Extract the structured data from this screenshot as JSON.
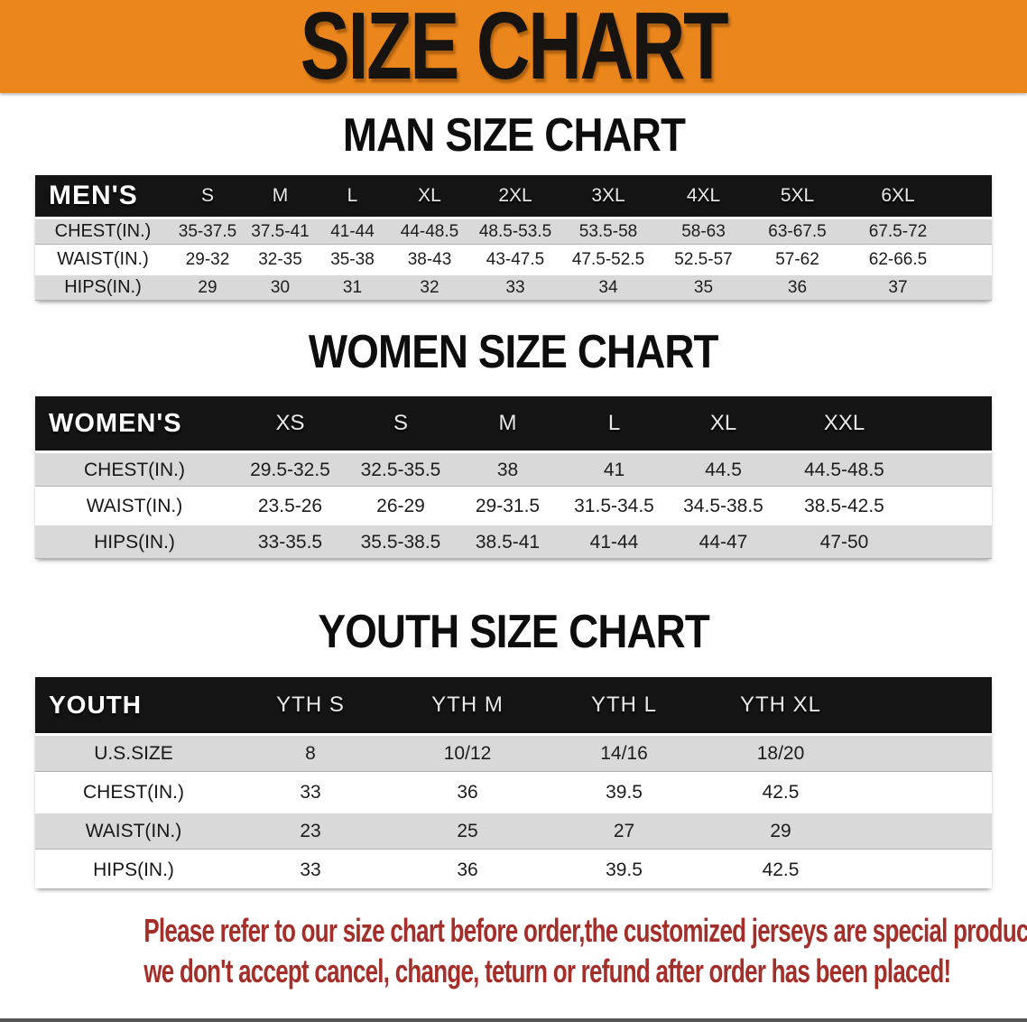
{
  "banner": {
    "title": "SIZE CHART"
  },
  "colors": {
    "banner_bg": "#EA861B",
    "header_bar": "#141414",
    "row_gray": "#D9D9D9",
    "disclaimer_text": "#A42F2A"
  },
  "sections": [
    {
      "heading": "MAN SIZE CHART",
      "table": {
        "label": "MEN'S",
        "columns": [
          "S",
          "M",
          "L",
          "XL",
          "2XL",
          "3XL",
          "4XL",
          "5XL",
          "6XL"
        ],
        "rows": [
          {
            "label": "CHEST(IN.)",
            "values": [
              "35-37.5",
              "37.5-41",
              "41-44",
              "44-48.5",
              "48.5-53.5",
              "53.5-58",
              "58-63",
              "63-67.5",
              "67.5-72"
            ]
          },
          {
            "label": "WAIST(IN.)",
            "values": [
              "29-32",
              "32-35",
              "35-38",
              "38-43",
              "43-47.5",
              "47.5-52.5",
              "52.5-57",
              "57-62",
              "62-66.5"
            ]
          },
          {
            "label": "HIPS(IN.)",
            "values": [
              "29",
              "30",
              "31",
              "32",
              "33",
              "34",
              "35",
              "36",
              "37"
            ]
          }
        ]
      }
    },
    {
      "heading": "WOMEN SIZE CHART",
      "table": {
        "label": "WOMEN'S",
        "columns": [
          "XS",
          "S",
          "M",
          "L",
          "XL",
          "XXL"
        ],
        "rows": [
          {
            "label": "CHEST(IN.)",
            "values": [
              "29.5-32.5",
              "32.5-35.5",
              "38",
              "41",
              "44.5",
              "44.5-48.5"
            ]
          },
          {
            "label": "WAIST(IN.)",
            "values": [
              "23.5-26",
              "26-29",
              "29-31.5",
              "31.5-34.5",
              "34.5-38.5",
              "38.5-42.5"
            ]
          },
          {
            "label": "HIPS(IN.)",
            "values": [
              "33-35.5",
              "35.5-38.5",
              "38.5-41",
              "41-44",
              "44-47",
              "47-50"
            ]
          }
        ]
      }
    },
    {
      "heading": "YOUTH SIZE CHART",
      "table": {
        "label": "YOUTH",
        "columns": [
          "YTH S",
          "YTH M",
          "YTH L",
          "YTH XL"
        ],
        "rows": [
          {
            "label": "U.S.SIZE",
            "values": [
              "8",
              "10/12",
              "14/16",
              "18/20"
            ]
          },
          {
            "label": "CHEST(IN.)",
            "values": [
              "33",
              "36",
              "39.5",
              "42.5"
            ]
          },
          {
            "label": "WAIST(IN.)",
            "values": [
              "23",
              "25",
              "27",
              "29"
            ]
          },
          {
            "label": "HIPS(IN.)",
            "values": [
              "33",
              "36",
              "39.5",
              "42.5"
            ]
          }
        ]
      }
    }
  ],
  "disclaimer": {
    "lines": [
      "Please refer to our size chart before order,the customized jerseys are special products,",
      "we don't accept cancel, change, teturn or refund after order has been placed!"
    ]
  }
}
